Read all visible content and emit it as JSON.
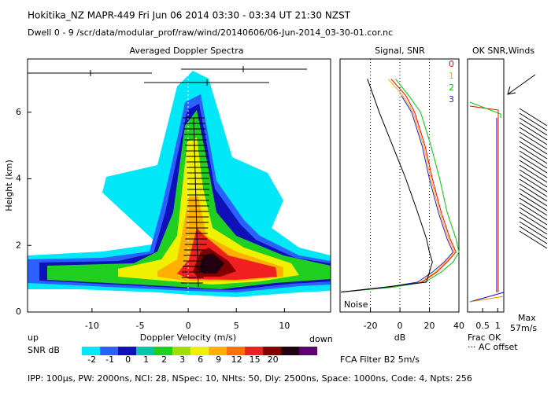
{
  "header": {
    "title": "Hokitika_NZ  MAPR-449  Fri Jun 06 2014 03:30 - 03:34 UT 21:30 NZST",
    "subtitle": "Dwell  0 - 9   /scr/data/modular_prof/raw/wind/20140606/06-Jun-2014_03-30-01.cor.nc"
  },
  "chart_data": [
    {
      "type": "contour",
      "title": "Averaged Doppler Spectra",
      "xlabel": "Doppler Velocity (m/s)",
      "ylabel": "Height (km)",
      "xlim": [
        -16.7,
        14.8
      ],
      "xticks": [
        -10,
        -5,
        0,
        5,
        10
      ],
      "ylim": [
        0,
        7.6
      ],
      "yticks": [
        0,
        2,
        4,
        6
      ],
      "x_left_label": "up",
      "x_right_label": "down",
      "colorbar": {
        "label": "SNR dB",
        "ticks": [
          -2,
          -1,
          0,
          1,
          2,
          3,
          6,
          9,
          12,
          15,
          20
        ],
        "colors": [
          "#00e8f8",
          "#2a60ff",
          "#1010b8",
          "#00c8a8",
          "#20d020",
          "#a0e000",
          "#f0f000",
          "#ffb000",
          "#ff7000",
          "#f02020",
          "#800000",
          "#200010",
          "#600070"
        ]
      }
    },
    {
      "type": "line",
      "title": "Signal, SNR",
      "xlabel": "dB",
      "xlim": [
        -40.6,
        40
      ],
      "xticks": [
        -20,
        0,
        20,
        40
      ],
      "ylim": [
        0,
        7.6
      ],
      "annotation": "Noise",
      "y": [
        0.6,
        0.75,
        0.9,
        1.2,
        1.5,
        1.8,
        2.2,
        3,
        4,
        5,
        6,
        6.5,
        7.0
      ],
      "series": [
        {
          "name": "0",
          "color": "#ff0000",
          "values": [
            -40,
            -5,
            15,
            25,
            32,
            38,
            34,
            28,
            22,
            17,
            10,
            4,
            -6
          ]
        },
        {
          "name": "1",
          "color": "#ffa500",
          "values": [
            -40,
            -6,
            14,
            24,
            31,
            37,
            33,
            27,
            21,
            16,
            9,
            2,
            -8
          ]
        },
        {
          "name": "2",
          "color": "#00cc00",
          "values": [
            -40,
            -4,
            17,
            28,
            36,
            40,
            38,
            32,
            27,
            21,
            14,
            6,
            -3
          ]
        },
        {
          "name": "3",
          "color": "#2020c0",
          "values": [
            -40,
            -8,
            12,
            22,
            30,
            36,
            32,
            26,
            20,
            15,
            8,
            1,
            null
          ]
        },
        {
          "color": "#000000",
          "values": [
            -40,
            -10,
            18,
            20,
            22,
            20,
            18,
            12,
            4,
            -5,
            -14,
            -18,
            -22
          ]
        }
      ]
    },
    {
      "type": "wind",
      "title": "OK SNR,Winds",
      "xlabel": "Frac OK",
      "xlim": [
        0,
        1.2
      ],
      "xticks": [
        0.5,
        1
      ],
      "ylim": [
        0,
        7.6
      ],
      "annotations": [
        "··· AC offset",
        "Max",
        "57m/s"
      ]
    }
  ],
  "filter": "FCA Filter B2  5m/s",
  "footer": "IPP: 100μs, PW: 2000ns, NCI:  28, NSpec: 10, NHts: 50, Dly: 2500ns, Space: 1000ns, Code: 4, Npts: 256"
}
